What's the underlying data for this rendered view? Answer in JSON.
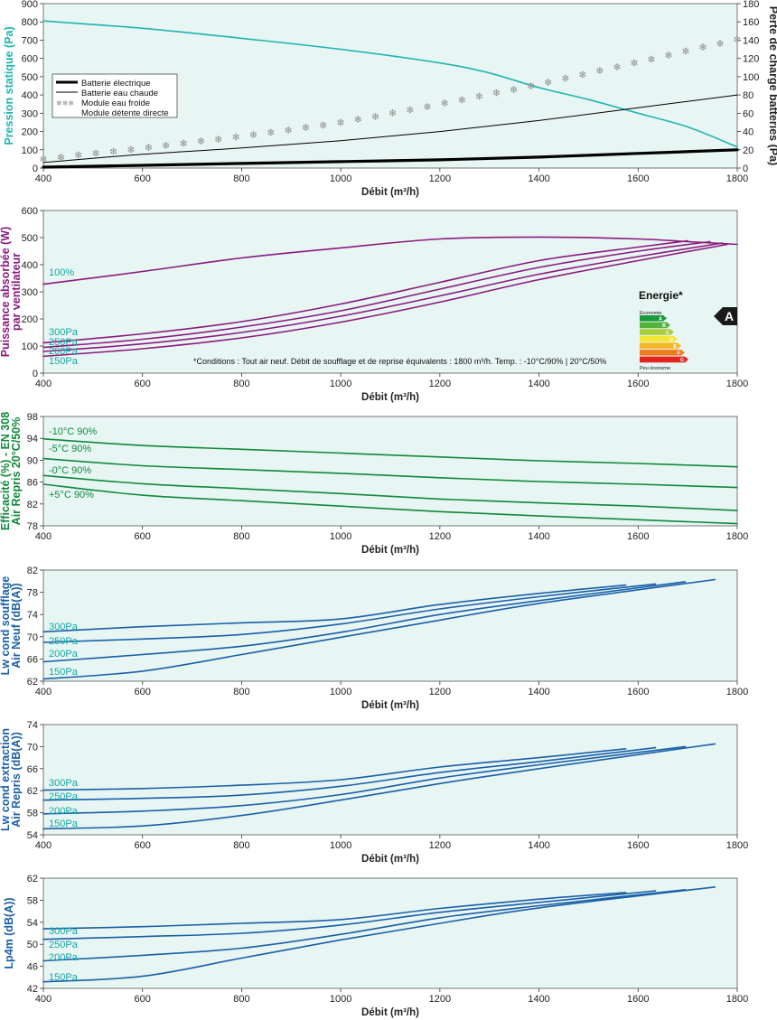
{
  "chart_data": [
    {
      "type": "line",
      "xlabel": "Débit (m³/h)",
      "ylabel": "Pression statique (Pa)",
      "ylabel_right": "Perte de charge batteries (Pa)",
      "xlim": [
        400,
        1800
      ],
      "xticks": [
        400,
        600,
        800,
        1000,
        1200,
        1400,
        1600,
        1800
      ],
      "ylim": [
        0,
        900
      ],
      "yticks": [
        0,
        100,
        200,
        300,
        400,
        500,
        600,
        700,
        800,
        900
      ],
      "ylim_right": [
        0,
        180
      ],
      "yticks_right": [
        0,
        20,
        40,
        60,
        80,
        100,
        120,
        140,
        160,
        180
      ],
      "grid": false,
      "legend_position": "left",
      "series": [
        {
          "name": "",
          "axis": "left",
          "color": "#1fb5b0",
          "style": "solid",
          "x": [
            400,
            600,
            800,
            1000,
            1200,
            1300,
            1400,
            1500,
            1600,
            1700,
            1800
          ],
          "y": [
            805,
            765,
            710,
            650,
            575,
            520,
            440,
            375,
            300,
            225,
            115
          ]
        },
        {
          "name": "Batterie électrique",
          "axis": "right",
          "color": "#000000",
          "style": "thick",
          "x": [
            400,
            600,
            800,
            1000,
            1200,
            1400,
            1600,
            1800
          ],
          "y": [
            1,
            3,
            5,
            7,
            9,
            12,
            16,
            20
          ]
        },
        {
          "name": "Batterie eau chaude",
          "axis": "right",
          "color": "#000000",
          "style": "thin",
          "x": [
            400,
            600,
            800,
            1000,
            1200,
            1400,
            1600,
            1800
          ],
          "y": [
            6,
            15,
            22,
            30,
            40,
            52,
            66,
            80
          ]
        },
        {
          "name": "Module eau froide",
          "axis": "right",
          "color": "#8a8a8a",
          "style": "snowflake",
          "x": [
            400,
            600,
            800,
            1000,
            1200,
            1400,
            1600,
            1800
          ],
          "y": [
            10,
            22,
            35,
            50,
            70,
            92,
            116,
            141
          ]
        },
        {
          "name": "Module détente directe",
          "axis": "right",
          "color": "#8a8a8a",
          "style": "none",
          "x": [],
          "y": []
        }
      ]
    },
    {
      "type": "line",
      "xlabel": "Débit (m³/h)",
      "ylabel": "Puissance absorbée (W)\npar ventilateur",
      "xlim": [
        400,
        1800
      ],
      "xticks": [
        400,
        600,
        800,
        1000,
        1200,
        1400,
        1600,
        1800
      ],
      "ylim": [
        0,
        600
      ],
      "yticks": [
        0,
        100,
        200,
        300,
        400,
        500,
        600
      ],
      "grid": false,
      "note": "*Conditions : Tout air neuf. Débit de soufflage et de reprise équivalents : 1800 m³/h. Temp. : -10°C/90% | 20°C/50%",
      "energy_label": {
        "title": "Energie*",
        "top_text": "Economie",
        "bottom_text": "Peu économe",
        "classes": [
          "A",
          "B",
          "C",
          "D",
          "E",
          "F",
          "G"
        ],
        "colors": [
          "#1a9a3c",
          "#52b23a",
          "#a8cf3a",
          "#f2e631",
          "#f5b725",
          "#ee7d21",
          "#e4241f"
        ],
        "rating": "A"
      },
      "series": [
        {
          "name": "100%",
          "color": "#8b1a7e",
          "x": [
            400,
            600,
            800,
            1000,
            1200,
            1400,
            1600,
            1700,
            1800
          ],
          "y": [
            328,
            375,
            425,
            462,
            495,
            502,
            495,
            485,
            475
          ]
        },
        {
          "name": "300Pa",
          "color": "#8b1a7e",
          "x": [
            400,
            600,
            800,
            1000,
            1200,
            1400,
            1600,
            1700
          ],
          "y": [
            112,
            145,
            190,
            255,
            335,
            415,
            465,
            488
          ]
        },
        {
          "name": "250Pa",
          "color": "#8b1a7e",
          "x": [
            400,
            600,
            800,
            1000,
            1200,
            1400,
            1600,
            1745
          ],
          "y": [
            95,
            125,
            170,
            230,
            310,
            390,
            450,
            485
          ]
        },
        {
          "name": "200Pa",
          "color": "#8b1a7e",
          "x": [
            400,
            600,
            800,
            1000,
            1200,
            1400,
            1600,
            1770
          ],
          "y": [
            80,
            108,
            150,
            210,
            285,
            365,
            430,
            480
          ]
        },
        {
          "name": "150Pa",
          "color": "#8b1a7e",
          "x": [
            400,
            600,
            800,
            1000,
            1200,
            1400,
            1600,
            1780
          ],
          "y": [
            62,
            90,
            130,
            188,
            262,
            345,
            415,
            475
          ]
        }
      ]
    },
    {
      "type": "line",
      "xlabel": "Débit (m³/h)",
      "ylabel": "Efficacité (%) - EN 308\nAir Repris 20°C/50%",
      "xlim": [
        400,
        1800
      ],
      "xticks": [
        400,
        600,
        800,
        1000,
        1200,
        1400,
        1600,
        1800
      ],
      "ylim": [
        78,
        98
      ],
      "yticks": [
        78,
        82,
        86,
        90,
        94,
        98
      ],
      "grid": false,
      "series": [
        {
          "name": "-10°C 90%",
          "color": "#0e8a3a",
          "x": [
            400,
            600,
            800,
            1000,
            1200,
            1400,
            1600,
            1800
          ],
          "y": [
            93.9,
            92.7,
            92.0,
            91.3,
            90.6,
            89.9,
            89.4,
            88.8
          ]
        },
        {
          "name": "-5°C 90%",
          "color": "#0e8a3a",
          "x": [
            400,
            600,
            800,
            1000,
            1200,
            1400,
            1600,
            1800
          ],
          "y": [
            90.3,
            89.0,
            88.3,
            87.6,
            86.8,
            86.1,
            85.6,
            85.0
          ]
        },
        {
          "name": "-0°C 90%",
          "color": "#0e8a3a",
          "x": [
            400,
            600,
            800,
            1000,
            1200,
            1400,
            1600,
            1800
          ],
          "y": [
            87.2,
            85.7,
            84.8,
            83.9,
            82.9,
            82.2,
            81.6,
            80.8
          ]
        },
        {
          "name": "+5°C 90%",
          "color": "#0e8a3a",
          "x": [
            400,
            600,
            800,
            1000,
            1200,
            1400,
            1600,
            1800
          ],
          "y": [
            85.6,
            83.6,
            82.6,
            81.6,
            80.6,
            79.8,
            79.1,
            78.4
          ]
        }
      ]
    },
    {
      "type": "line",
      "xlabel": "Débit (m³/h)",
      "ylabel": "Lw cond soufflage\nAir Neuf (dB(A))",
      "xlim": [
        400,
        1800
      ],
      "xticks": [
        400,
        600,
        800,
        1000,
        1200,
        1400,
        1600,
        1800
      ],
      "ylim": [
        62,
        82
      ],
      "yticks": [
        62,
        66,
        70,
        74,
        78,
        82
      ],
      "grid": false,
      "series": [
        {
          "name": "300Pa",
          "color": "#1a5fa8",
          "x": [
            400,
            600,
            800,
            1000,
            1200,
            1400,
            1575
          ],
          "y": [
            70.9,
            71.8,
            72.5,
            73.2,
            75.8,
            77.8,
            79.3
          ]
        },
        {
          "name": "250Pa",
          "color": "#1a5fa8",
          "x": [
            400,
            600,
            800,
            1000,
            1200,
            1400,
            1635
          ],
          "y": [
            69.0,
            69.6,
            70.4,
            72.3,
            75.0,
            77.2,
            79.5
          ]
        },
        {
          "name": "200Pa",
          "color": "#1a5fa8",
          "x": [
            400,
            600,
            800,
            1000,
            1200,
            1400,
            1695
          ],
          "y": [
            65.5,
            66.8,
            68.3,
            70.8,
            74.0,
            76.5,
            79.9
          ]
        },
        {
          "name": "150Pa",
          "color": "#1a5fa8",
          "x": [
            400,
            600,
            800,
            1000,
            1200,
            1400,
            1755
          ],
          "y": [
            62.4,
            63.8,
            66.8,
            69.9,
            73.0,
            76.0,
            80.3
          ]
        }
      ]
    },
    {
      "type": "line",
      "xlabel": "Débit (m³/h)",
      "ylabel": "Lw cond extraction\nAir Repris (dB(A))",
      "xlim": [
        400,
        1800
      ],
      "xticks": [
        400,
        600,
        800,
        1000,
        1200,
        1400,
        1600,
        1800
      ],
      "ylim": [
        54,
        74
      ],
      "yticks": [
        54,
        58,
        62,
        66,
        70,
        74
      ],
      "grid": false,
      "series": [
        {
          "name": "300Pa",
          "color": "#1a5fa8",
          "x": [
            400,
            600,
            800,
            1000,
            1200,
            1400,
            1575
          ],
          "y": [
            62.1,
            62.4,
            63.0,
            64.0,
            66.3,
            68.0,
            69.6
          ]
        },
        {
          "name": "250Pa",
          "color": "#1a5fa8",
          "x": [
            400,
            600,
            800,
            1000,
            1200,
            1400,
            1635
          ],
          "y": [
            60.3,
            60.6,
            61.2,
            62.8,
            65.3,
            67.3,
            69.8
          ]
        },
        {
          "name": "200Pa",
          "color": "#1a5fa8",
          "x": [
            400,
            600,
            800,
            1000,
            1200,
            1400,
            1695
          ],
          "y": [
            57.8,
            58.3,
            59.3,
            61.3,
            64.3,
            66.7,
            70.0
          ]
        },
        {
          "name": "150Pa",
          "color": "#1a5fa8",
          "x": [
            400,
            600,
            800,
            1000,
            1200,
            1400,
            1755
          ],
          "y": [
            55.1,
            55.6,
            57.5,
            60.3,
            63.3,
            66.0,
            70.5
          ]
        }
      ]
    },
    {
      "type": "line",
      "xlabel": "Débit (m³/h)",
      "ylabel": "Lp4m (dB(A))",
      "xlim": [
        400,
        1800
      ],
      "xticks": [
        400,
        600,
        800,
        1000,
        1200,
        1400,
        1600,
        1800
      ],
      "ylim": [
        42,
        62
      ],
      "yticks": [
        42,
        46,
        50,
        54,
        58,
        62
      ],
      "grid": false,
      "series": [
        {
          "name": "300Pa",
          "color": "#1a5fa8",
          "x": [
            400,
            600,
            800,
            1000,
            1200,
            1400,
            1575
          ],
          "y": [
            52.8,
            53.2,
            53.8,
            54.5,
            56.5,
            58.2,
            59.4
          ]
        },
        {
          "name": "250Pa",
          "color": "#1a5fa8",
          "x": [
            400,
            600,
            800,
            1000,
            1200,
            1400,
            1635
          ],
          "y": [
            50.9,
            51.4,
            52.0,
            53.5,
            55.8,
            57.6,
            59.7
          ]
        },
        {
          "name": "200Pa",
          "color": "#1a5fa8",
          "x": [
            400,
            600,
            800,
            1000,
            1200,
            1400,
            1695
          ],
          "y": [
            47.0,
            48.0,
            49.3,
            51.8,
            54.8,
            57.0,
            59.9
          ]
        },
        {
          "name": "150Pa",
          "color": "#1a5fa8",
          "x": [
            400,
            600,
            800,
            1000,
            1200,
            1400,
            1755
          ],
          "y": [
            43.2,
            44.2,
            47.5,
            50.8,
            53.8,
            56.6,
            60.4
          ]
        }
      ]
    }
  ],
  "colors": {
    "plot_background": "#e7f5f3",
    "pressure": "#1fb5b0",
    "power": "#8b1a7e",
    "efficiency": "#0e8a3a",
    "acoustic": "#1a5fa8",
    "series_label": "#13a8a3"
  }
}
